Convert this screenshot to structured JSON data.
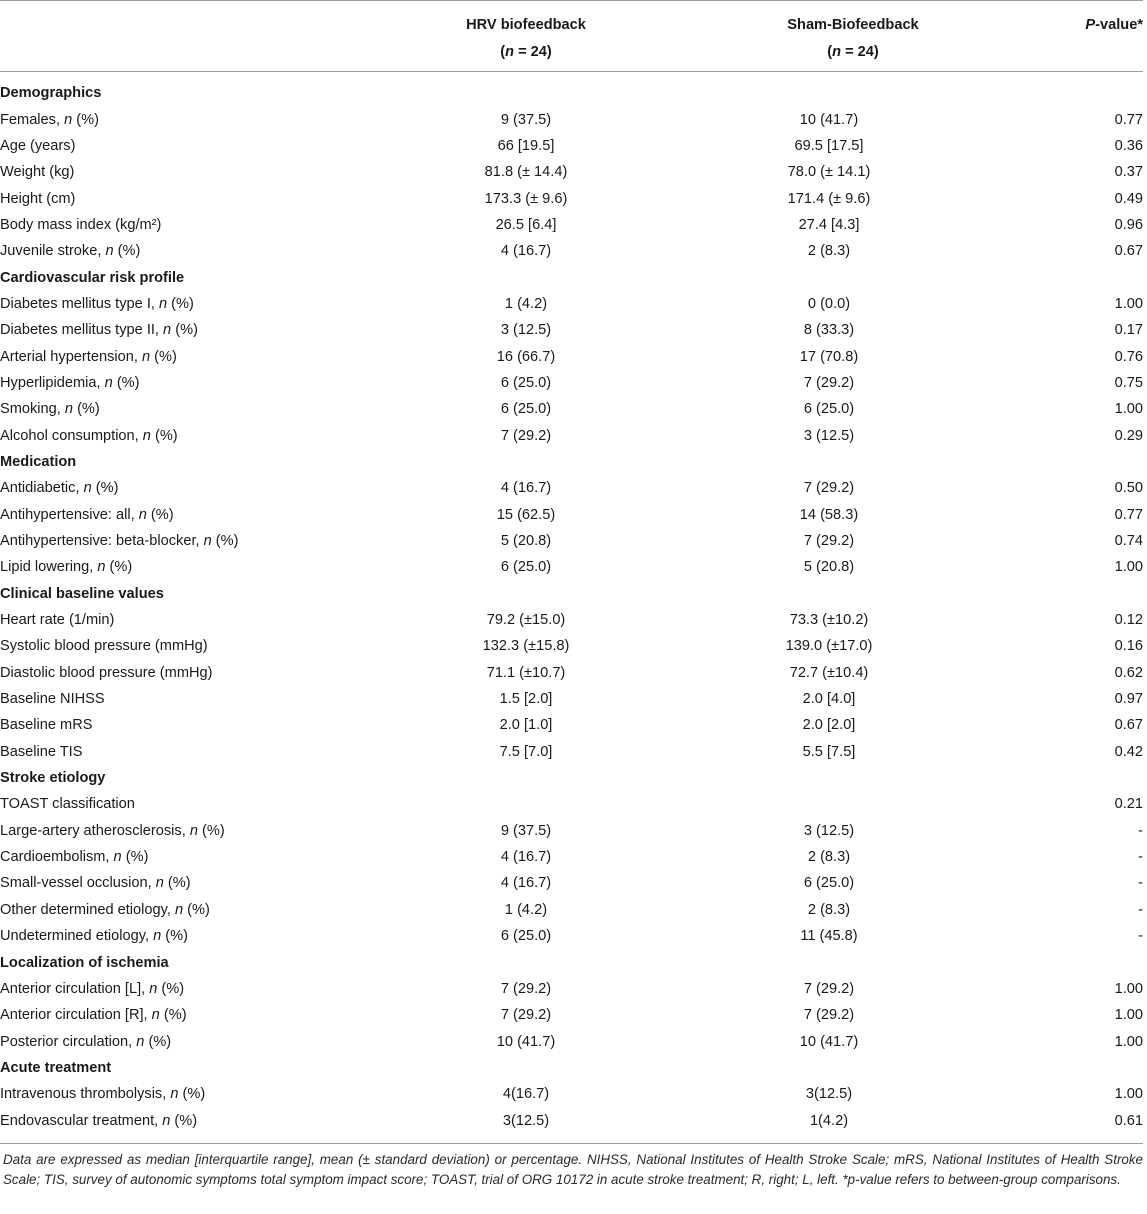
{
  "header": {
    "col_hrv_line1": "HRV biofeedback",
    "col_hrv_line2": "(n = 24)",
    "col_sham_line1": "Sham-Biofeedback",
    "col_sham_line2": "(n = 24)",
    "col_p": "P-value*"
  },
  "rows": [
    {
      "type": "section",
      "label": "Demographics"
    },
    {
      "type": "row",
      "label": "Females, ",
      "label_italic": "n",
      "label_suffix": " (%)",
      "hrv": "9 (37.5)",
      "sham": "10 (41.7)",
      "p": "0.77"
    },
    {
      "type": "row",
      "label": "Age (years)",
      "hrv": "66 [19.5]",
      "sham": "69.5 [17.5]",
      "p": "0.36"
    },
    {
      "type": "row",
      "label": "Weight (kg)",
      "hrv": "81.8 (± 14.4)",
      "sham": "78.0 (± 14.1)",
      "p": "0.37"
    },
    {
      "type": "row",
      "label": "Height (cm)",
      "hrv": "173.3 (± 9.6)",
      "sham": "171.4 (± 9.6)",
      "p": "0.49"
    },
    {
      "type": "row",
      "label": "Body mass index (kg/m²)",
      "hrv": "26.5 [6.4]",
      "sham": "27.4 [4.3]",
      "p": "0.96"
    },
    {
      "type": "row",
      "label": "Juvenile stroke, ",
      "label_italic": "n",
      "label_suffix": " (%)",
      "hrv": "4 (16.7)",
      "sham": "2 (8.3)",
      "p": "0.67"
    },
    {
      "type": "section",
      "label": "Cardiovascular risk profile"
    },
    {
      "type": "row",
      "label": "Diabetes mellitus type I, ",
      "label_italic": "n",
      "label_suffix": " (%)",
      "hrv": "1 (4.2)",
      "sham": "0 (0.0)",
      "p": "1.00"
    },
    {
      "type": "row",
      "label": "Diabetes mellitus type II, ",
      "label_italic": "n",
      "label_suffix": " (%)",
      "hrv": "3 (12.5)",
      "sham": "8 (33.3)",
      "p": "0.17"
    },
    {
      "type": "row",
      "label": "Arterial hypertension, ",
      "label_italic": "n",
      "label_suffix": " (%)",
      "hrv": "16 (66.7)",
      "sham": "17 (70.8)",
      "p": "0.76"
    },
    {
      "type": "row",
      "label": "Hyperlipidemia, ",
      "label_italic": "n",
      "label_suffix": " (%)",
      "hrv": "6 (25.0)",
      "sham": "7 (29.2)",
      "p": "0.75"
    },
    {
      "type": "row",
      "label": "Smoking, ",
      "label_italic": "n",
      "label_suffix": " (%)",
      "hrv": "6 (25.0)",
      "sham": "6 (25.0)",
      "p": "1.00"
    },
    {
      "type": "row",
      "label": "Alcohol consumption, ",
      "label_italic": "n",
      "label_suffix": " (%)",
      "hrv": "7 (29.2)",
      "sham": "3 (12.5)",
      "p": "0.29"
    },
    {
      "type": "section",
      "label": "Medication"
    },
    {
      "type": "row",
      "label": "Antidiabetic, ",
      "label_italic": "n",
      "label_suffix": " (%)",
      "hrv": "4 (16.7)",
      "sham": "7 (29.2)",
      "p": "0.50"
    },
    {
      "type": "row",
      "label": "Antihypertensive: all, ",
      "label_italic": "n",
      "label_suffix": " (%)",
      "hrv": "15 (62.5)",
      "sham": "14 (58.3)",
      "p": "0.77"
    },
    {
      "type": "row",
      "label": "Antihypertensive: beta-blocker, ",
      "label_italic": "n",
      "label_suffix": " (%)",
      "hrv": "5 (20.8)",
      "sham": "7 (29.2)",
      "p": "0.74"
    },
    {
      "type": "row",
      "label": "Lipid lowering, ",
      "label_italic": "n",
      "label_suffix": " (%)",
      "hrv": "6 (25.0)",
      "sham": "5 (20.8)",
      "p": "1.00"
    },
    {
      "type": "section",
      "label": "Clinical baseline values"
    },
    {
      "type": "row",
      "label": "Heart rate (1/min)",
      "hrv": "79.2 (±15.0)",
      "sham": "73.3 (±10.2)",
      "p": "0.12"
    },
    {
      "type": "row",
      "label": "Systolic blood pressure (mmHg)",
      "hrv": "132.3 (±15.8)",
      "sham": "139.0 (±17.0)",
      "p": "0.16"
    },
    {
      "type": "row",
      "label": "Diastolic blood pressure (mmHg)",
      "hrv": "71.1 (±10.7)",
      "sham": "72.7 (±10.4)",
      "p": "0.62"
    },
    {
      "type": "row",
      "label": "Baseline NIHSS",
      "hrv": "1.5 [2.0]",
      "sham": "2.0 [4.0]",
      "p": "0.97"
    },
    {
      "type": "row",
      "label": "Baseline mRS",
      "hrv": "2.0 [1.0]",
      "sham": "2.0 [2.0]",
      "p": "0.67"
    },
    {
      "type": "row",
      "label": "Baseline TIS",
      "hrv": "7.5 [7.0]",
      "sham": "5.5 [7.5]",
      "p": "0.42"
    },
    {
      "type": "section",
      "label": "Stroke etiology"
    },
    {
      "type": "row",
      "label": "TOAST classification",
      "hrv": "",
      "sham": "",
      "p": "0.21"
    },
    {
      "type": "row",
      "label": "Large-artery atherosclerosis, ",
      "label_italic": "n",
      "label_suffix": " (%)",
      "hrv": "9 (37.5)",
      "sham": "3 (12.5)",
      "p": "-"
    },
    {
      "type": "row",
      "label": "Cardioembolism, ",
      "label_italic": "n",
      "label_suffix": " (%)",
      "hrv": "4 (16.7)",
      "sham": "2 (8.3)",
      "p": "-"
    },
    {
      "type": "row",
      "label": "Small-vessel occlusion, ",
      "label_italic": "n",
      "label_suffix": " (%)",
      "hrv": "4 (16.7)",
      "sham": "6 (25.0)",
      "p": "-"
    },
    {
      "type": "row",
      "label": "Other determined etiology, ",
      "label_italic": "n",
      "label_suffix": " (%)",
      "hrv": "1 (4.2)",
      "sham": "2 (8.3)",
      "p": "-"
    },
    {
      "type": "row",
      "label": "Undetermined etiology, ",
      "label_italic": "n",
      "label_suffix": " (%)",
      "hrv": "6 (25.0)",
      "sham": "11 (45.8)",
      "p": "-"
    },
    {
      "type": "section",
      "label": "Localization of ischemia"
    },
    {
      "type": "row",
      "label": "Anterior circulation [L], ",
      "label_italic": "n",
      "label_suffix": " (%)",
      "hrv": "7 (29.2)",
      "sham": "7 (29.2)",
      "p": "1.00"
    },
    {
      "type": "row",
      "label": "Anterior circulation [R], ",
      "label_italic": "n",
      "label_suffix": " (%)",
      "hrv": "7 (29.2)",
      "sham": "7 (29.2)",
      "p": "1.00"
    },
    {
      "type": "row",
      "label": "Posterior circulation, ",
      "label_italic": "n",
      "label_suffix": " (%)",
      "hrv": "10 (41.7)",
      "sham": "10 (41.7)",
      "p": "1.00"
    },
    {
      "type": "section",
      "label": "Acute treatment"
    },
    {
      "type": "row",
      "label": "Intravenous thrombolysis, ",
      "label_italic": "n",
      "label_suffix": " (%)",
      "hrv": "4(16.7)",
      "sham": "3(12.5)",
      "p": "1.00"
    },
    {
      "type": "row",
      "label": "Endovascular treatment, ",
      "label_italic": "n",
      "label_suffix": " (%)",
      "hrv": "3(12.5)",
      "sham": "1(4.2)",
      "p": "0.61"
    }
  ],
  "footnote": "Data are expressed as median [interquartile range], mean (± standard deviation) or percentage. NIHSS, National Institutes of Health Stroke Scale; mRS, National Institutes of Health Stroke Scale; TIS, survey of autonomic symptoms total symptom impact score; TOAST, trial of ORG 10172 in acute stroke treatment; R, right; L, left. *p-value refers to between-group comparisons."
}
